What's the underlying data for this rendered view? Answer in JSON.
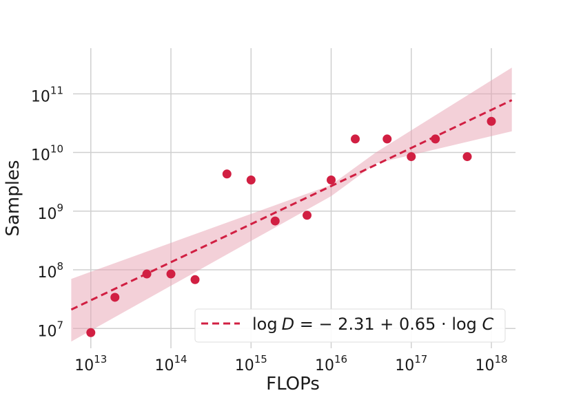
{
  "chart_data": {
    "type": "scatter",
    "xlabel": "FLOPs",
    "ylabel": "Samples",
    "x_scale": "log",
    "y_scale": "log",
    "xlim": [
      6000000000000.0,
      2e+18
    ],
    "ylim": [
      4600000.0,
      600000000000.0
    ],
    "grid": true,
    "legend_position": "lower right",
    "colors": {
      "points": "#d11f42",
      "fit": "#d11f42",
      "band": "#e7a2b2",
      "grid": "#cfcfcf"
    },
    "x_ticks": [
      {
        "value": 10000000000000.0,
        "base": "10",
        "exp": "13"
      },
      {
        "value": 100000000000000.0,
        "base": "10",
        "exp": "14"
      },
      {
        "value": 1000000000000000.0,
        "base": "10",
        "exp": "15"
      },
      {
        "value": 1e+16,
        "base": "10",
        "exp": "16"
      },
      {
        "value": 1e+17,
        "base": "10",
        "exp": "17"
      },
      {
        "value": 1e+18,
        "base": "10",
        "exp": "18"
      }
    ],
    "y_ticks": [
      {
        "value": 10000000.0,
        "base": "10",
        "exp": "7"
      },
      {
        "value": 100000000.0,
        "base": "10",
        "exp": "8"
      },
      {
        "value": 1000000000.0,
        "base": "10",
        "exp": "9"
      },
      {
        "value": 10000000000.0,
        "base": "10",
        "exp": "10"
      },
      {
        "value": 100000000000.0,
        "base": "10",
        "exp": "11"
      }
    ],
    "points": [
      {
        "x": 10000000000000.0,
        "y": 8500000.0
      },
      {
        "x": 20000000000000.0,
        "y": 34000000.0
      },
      {
        "x": 50000000000000.0,
        "y": 85000000.0
      },
      {
        "x": 100000000000000.0,
        "y": 85000000.0
      },
      {
        "x": 200000000000000.0,
        "y": 68000000.0
      },
      {
        "x": 500000000000000.0,
        "y": 4300000000.0
      },
      {
        "x": 1000000000000000.0,
        "y": 3400000000.0
      },
      {
        "x": 2000000000000000.0,
        "y": 680000000.0
      },
      {
        "x": 5000000000000000.0,
        "y": 850000000.0
      },
      {
        "x": 1e+16,
        "y": 3400000000.0
      },
      {
        "x": 2e+16,
        "y": 17000000000.0
      },
      {
        "x": 5e+16,
        "y": 17000000000.0
      },
      {
        "x": 1e+17,
        "y": 8500000000.0
      },
      {
        "x": 2e+17,
        "y": 17000000000.0
      },
      {
        "x": 5e+17,
        "y": 8500000000.0
      },
      {
        "x": 1e+18,
        "y": 34000000000.0
      }
    ],
    "fit": {
      "label_prefix": "log",
      "label_lhs": "D",
      "label_mid": " = − 2.31 + 0.65 · log ",
      "label_rhs": "C",
      "x": [
        5700000000000.0,
        1.8e+18
      ],
      "y": [
        21000000.0,
        78000000000.0
      ]
    },
    "confidence_band": {
      "x": [
        5700000000000.0,
        1e+16,
        3.6e+16,
        1.8e+18
      ],
      "lower": [
        6000000.0,
        1800000000.0,
        6500000000.0,
        23000000000.0
      ],
      "upper": [
        70000000.0,
        2800000000.0,
        10000000000.0,
        280000000000.0
      ]
    }
  }
}
